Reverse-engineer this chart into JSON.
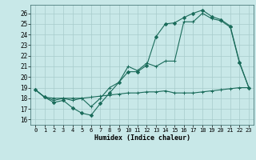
{
  "xlabel": "Humidex (Indice chaleur)",
  "bg_color": "#c8e8e8",
  "grid_color": "#a8cccc",
  "line_color": "#1a6b5a",
  "xlim": [
    -0.5,
    23.5
  ],
  "ylim": [
    15.5,
    26.8
  ],
  "xticks": [
    0,
    1,
    2,
    3,
    4,
    5,
    6,
    7,
    8,
    9,
    10,
    11,
    12,
    13,
    14,
    15,
    16,
    17,
    18,
    19,
    20,
    21,
    22,
    23
  ],
  "yticks": [
    16,
    17,
    18,
    19,
    20,
    21,
    22,
    23,
    24,
    25,
    26
  ],
  "series1_x": [
    0,
    1,
    2,
    3,
    4,
    5,
    6,
    7,
    8,
    9,
    10,
    11,
    12,
    13,
    14,
    15,
    16,
    17,
    18,
    19,
    20,
    21,
    22,
    23
  ],
  "series1_y": [
    18.8,
    18.1,
    17.6,
    17.8,
    17.1,
    16.6,
    16.4,
    17.5,
    18.5,
    19.5,
    20.5,
    20.5,
    21.1,
    23.8,
    25.0,
    25.1,
    25.6,
    26.0,
    26.3,
    25.7,
    25.4,
    24.8,
    21.4,
    19.0
  ],
  "series2_x": [
    0,
    1,
    2,
    3,
    4,
    5,
    6,
    7,
    8,
    9,
    10,
    11,
    12,
    13,
    14,
    15,
    16,
    17,
    18,
    19,
    20,
    21,
    22,
    23
  ],
  "series2_y": [
    18.8,
    18.1,
    18.0,
    18.0,
    18.0,
    18.0,
    18.1,
    18.2,
    18.3,
    18.4,
    18.5,
    18.5,
    18.6,
    18.6,
    18.7,
    18.5,
    18.5,
    18.5,
    18.6,
    18.7,
    18.8,
    18.9,
    19.0,
    19.0
  ],
  "series3_x": [
    0,
    1,
    2,
    3,
    4,
    5,
    6,
    7,
    8,
    9,
    10,
    11,
    12,
    13,
    14,
    15,
    16,
    17,
    18,
    19,
    20,
    21,
    22,
    23
  ],
  "series3_y": [
    18.8,
    18.1,
    17.8,
    18.0,
    17.8,
    18.0,
    17.2,
    18.0,
    19.0,
    19.5,
    21.0,
    20.6,
    21.3,
    21.0,
    21.5,
    21.5,
    25.2,
    25.2,
    26.0,
    25.5,
    25.3,
    24.7,
    21.3,
    19.0
  ]
}
